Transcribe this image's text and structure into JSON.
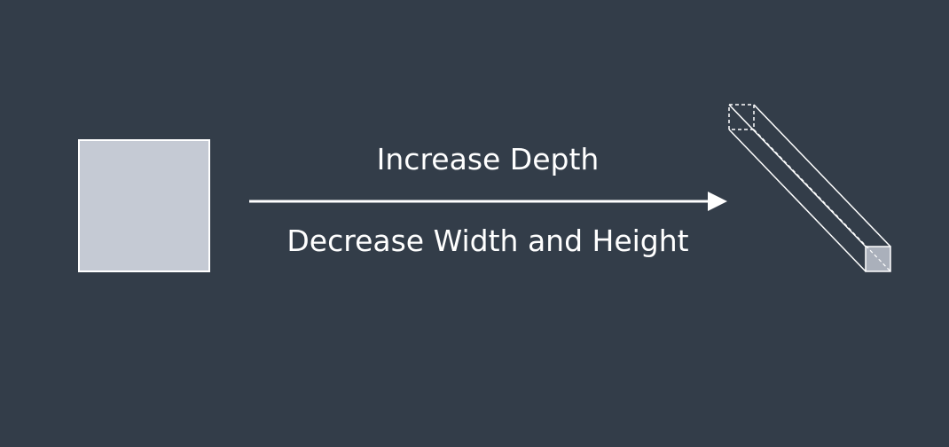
{
  "diagram": {
    "top_label": "Increase Depth",
    "bottom_label": "Decrease Width and Height"
  },
  "colors": {
    "background": "#333d49",
    "square_fill": "#c5cad4",
    "outline": "#ffffff",
    "text": "#ffffff",
    "end_face": "#aab0bb"
  }
}
